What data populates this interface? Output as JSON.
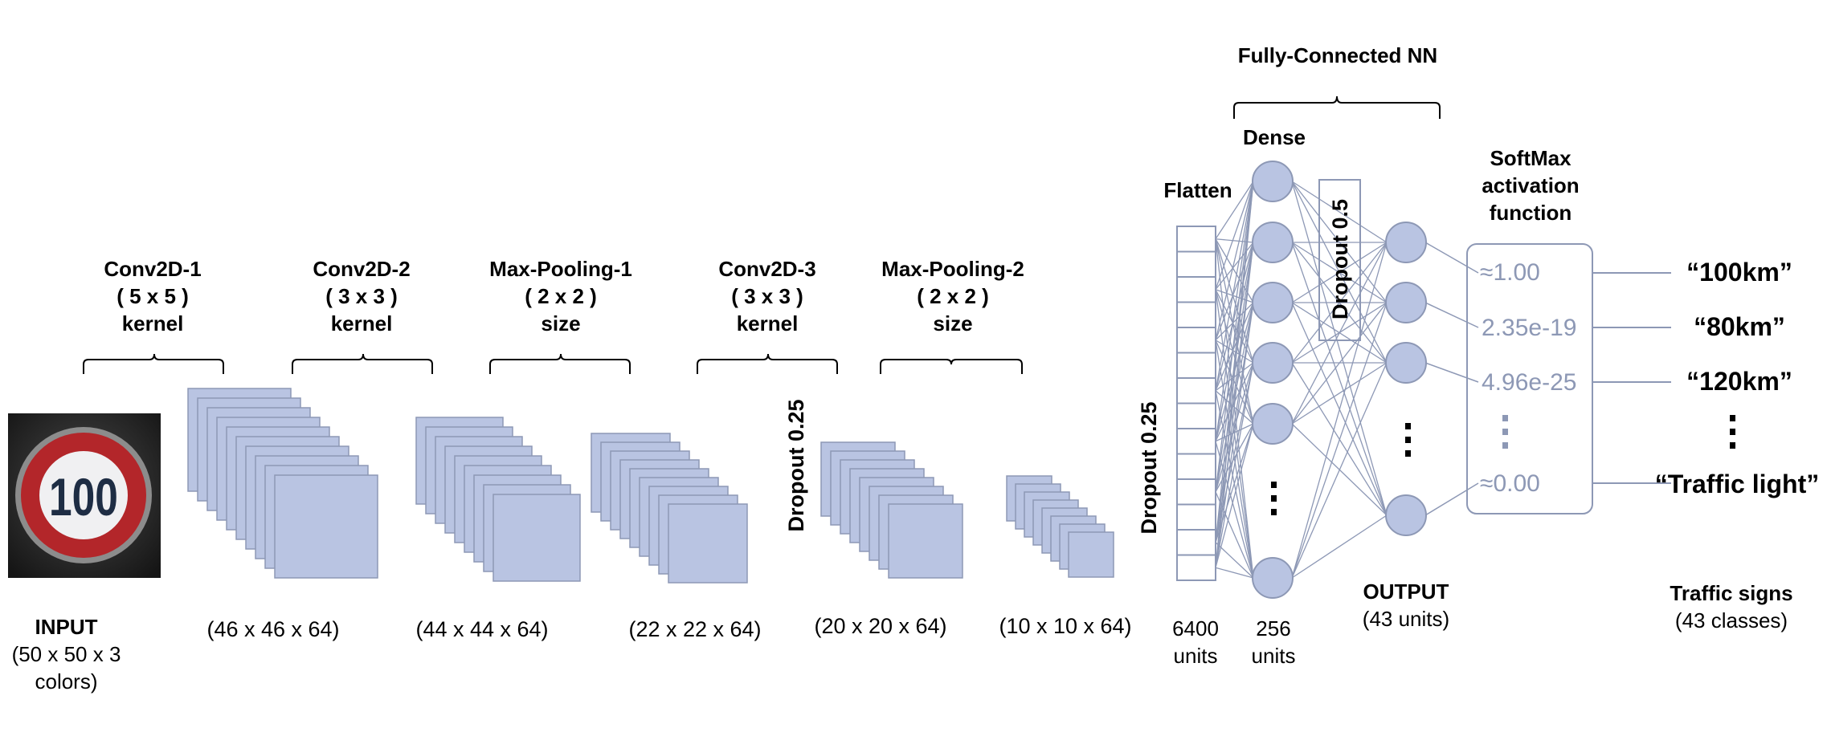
{
  "input": {
    "title": "INPUT",
    "dims_line1": "(50 x 50 x 3",
    "dims_line2": "colors)",
    "sign_number": "100"
  },
  "stages": [
    {
      "name": "Conv2D-1",
      "param": "( 5 x 5 )",
      "unit": "kernel",
      "dims": "(46 x 46 x 64)"
    },
    {
      "name": "Conv2D-2",
      "param": "( 3 x 3 )",
      "unit": "kernel",
      "dims": "(44 x 44 x 64)"
    },
    {
      "name": "Max-Pooling-1",
      "param": "( 2 x 2 )",
      "unit": "size",
      "dims": "(22 x 22 x 64)"
    },
    {
      "name": "Conv2D-3",
      "param": "( 3 x 3 )",
      "unit": "kernel",
      "dims": "(20 x 20 x 64)"
    },
    {
      "name": "Max-Pooling-2",
      "param": "( 2 x 2 )",
      "unit": "size",
      "dims": "(10 x 10 x 64)"
    }
  ],
  "dropouts": {
    "d1": "Dropout 0.25",
    "d2": "Dropout 0.25",
    "d3": "Dropout 0.5"
  },
  "fc": {
    "title": "Fully-Connected NN",
    "flatten": "Flatten",
    "dense": "Dense",
    "flatten_units_1": "6400",
    "flatten_units_2": "units",
    "dense_units_1": "256",
    "dense_units_2": "units",
    "output_title": "OUTPUT",
    "output_units": "(43 units)"
  },
  "softmax": {
    "title_1": "SoftMax",
    "title_2": "activation",
    "title_3": "function",
    "values": [
      "≈1.00",
      "2.35e-19",
      "4.96e-25",
      "≈0.00"
    ]
  },
  "classes": {
    "labels": [
      "“100km”",
      "“80km”",
      "“120km”",
      "“Traffic light”"
    ],
    "title": "Traffic signs",
    "count": "(43 classes)"
  },
  "colors": {
    "block_fill": "#b9c4e2",
    "block_stroke": "#8d98b5",
    "line": "#8d98b5",
    "sign_red": "#b3262a"
  }
}
